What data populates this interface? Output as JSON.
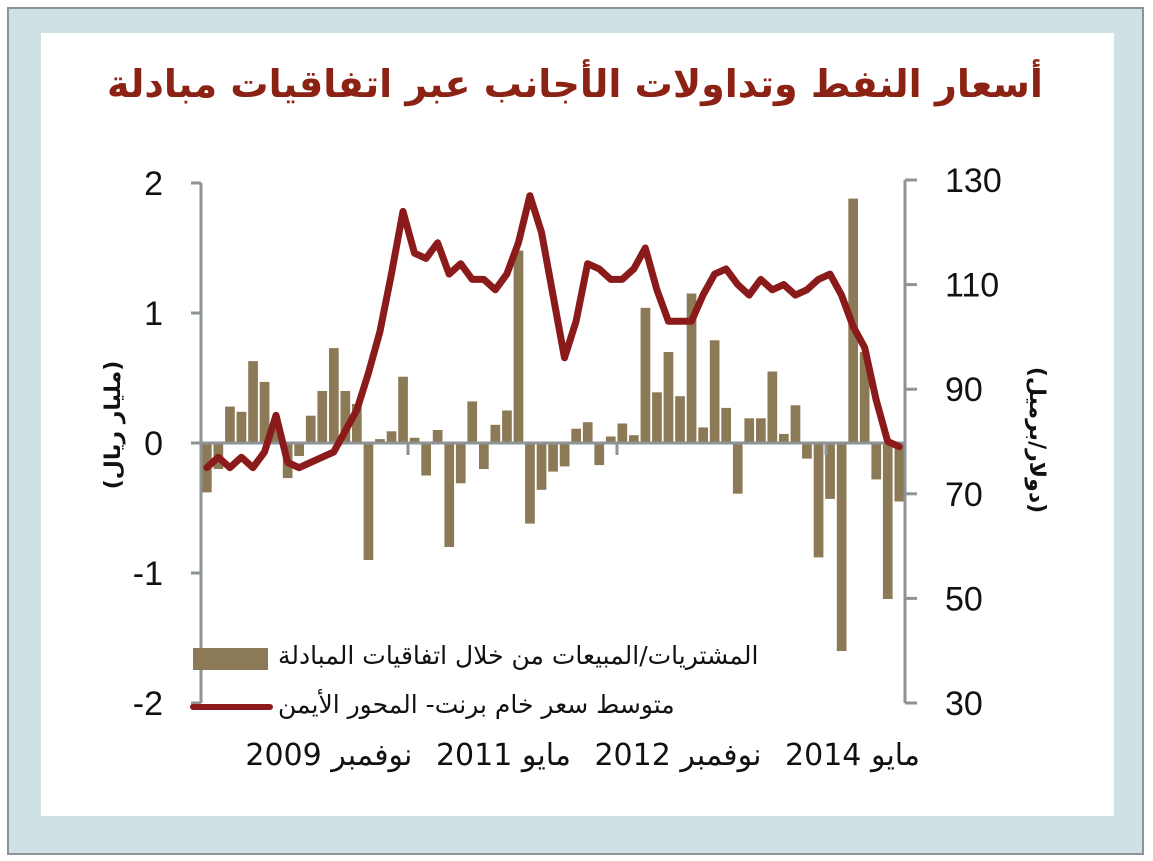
{
  "title": "أسعار النفط وتداولات الأجانب عبر اتفاقيات مبادلة",
  "colors": {
    "frame_bg": "#d0e1e5",
    "title": "#8b2213",
    "bars": "#8c7a57",
    "line": "#8b1a1a",
    "axis": "#8e9396"
  },
  "legend": {
    "bars_label": "المشتريات/المبيعات من خلال اتفاقيات المبادلة",
    "line_label": "متوسط سعر خام برنت- المحور الأيمن"
  },
  "axes": {
    "left_title": "(مليار ريال)",
    "right_title": "(دولار/برميل)",
    "left_ticks": [
      "2",
      "1",
      "0",
      "-1",
      "-2"
    ],
    "right_ticks": [
      "130",
      "110",
      "90",
      "70",
      "50",
      "30"
    ]
  },
  "x_labels": [
    "مايو 2014",
    "نوفمبر 2012",
    "مايو 2011",
    "نوفمبر 2009"
  ],
  "chart_data": {
    "type": "bar+line",
    "title": "أسعار النفط وتداولات الأجانب عبر اتفاقيات مبادلة",
    "xlabel": "",
    "ylabel": "مليار ريال",
    "y2label": "دولار/برميل",
    "ylim": [
      -2,
      2
    ],
    "y2lim": [
      30,
      130
    ],
    "x_tick_labels": [
      "نوفمبر 2009",
      "مايو 2011",
      "نوفمبر 2012",
      "مايو 2014"
    ],
    "x_start": "2009-11",
    "x_end": "2014-11",
    "frequency": "monthly",
    "legend_position": "bottom-inside",
    "series": [
      {
        "name": "المشتريات/المبيعات من خلال اتفاقيات المبادلة",
        "type": "bar",
        "axis": "left",
        "values": [
          -0.38,
          -0.2,
          0.28,
          0.24,
          0.63,
          0.47,
          0.18,
          -0.27,
          -0.1,
          0.21,
          0.4,
          0.73,
          0.4,
          0.3,
          -0.9,
          0.03,
          0.09,
          0.51,
          0.04,
          -0.25,
          0.1,
          -0.8,
          -0.31,
          0.32,
          -0.2,
          0.14,
          0.25,
          1.48,
          -0.62,
          -0.36,
          -0.22,
          -0.18,
          0.11,
          0.16,
          -0.17,
          0.05,
          0.15,
          0.06,
          1.04,
          0.39,
          0.7,
          0.36,
          1.15,
          0.12,
          0.79,
          0.27,
          -0.39,
          0.19,
          0.19,
          0.55,
          0.07,
          0.29,
          -0.12,
          -0.88,
          -0.43,
          -1.6,
          1.88,
          0.7,
          -0.28,
          -1.2,
          -0.45
        ]
      },
      {
        "name": "متوسط سعر خام برنت- المحور الأيمن",
        "type": "line",
        "axis": "right",
        "values": [
          75,
          77,
          75,
          77,
          75,
          78,
          85,
          76,
          75,
          76,
          77,
          78,
          82,
          86,
          93,
          101,
          112,
          124,
          116,
          115,
          118,
          112,
          114,
          111,
          111,
          109,
          112,
          118,
          127,
          120,
          108,
          96,
          103,
          114,
          113,
          111,
          111,
          113,
          117,
          109,
          103,
          103,
          103,
          108,
          112,
          113,
          110,
          108,
          111,
          109,
          110,
          108,
          109,
          111,
          112,
          108,
          102,
          98,
          88,
          80,
          79
        ]
      }
    ]
  }
}
